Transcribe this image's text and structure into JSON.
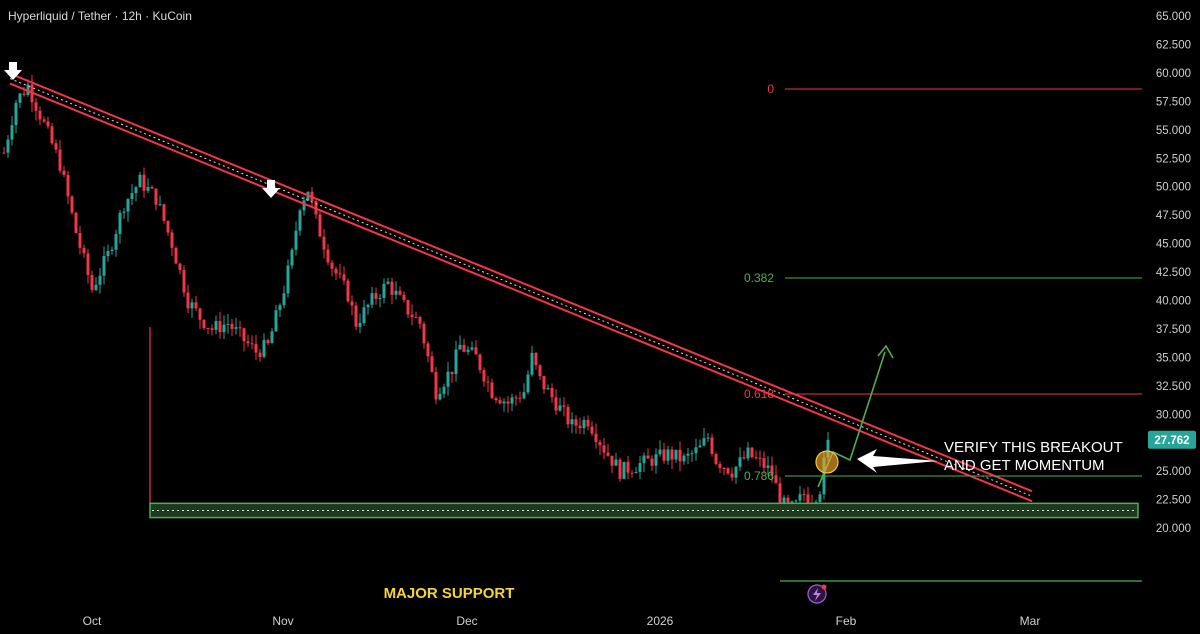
{
  "header": {
    "symbol": "Hyperliquid / Tether · 12h · KuCoin"
  },
  "chart_data": {
    "type": "candlestick",
    "pair": "Hyperliquid / Tether",
    "timeframe": "12h",
    "exchange": "KuCoin",
    "ylim": [
      20,
      65
    ],
    "y_ticks": [
      "65.000",
      "62.500",
      "60.000",
      "57.500",
      "55.000",
      "52.500",
      "50.000",
      "47.500",
      "45.000",
      "42.500",
      "40.000",
      "37.500",
      "35.000",
      "32.500",
      "30.000",
      "27.500",
      "25.000",
      "22.500",
      "20.000"
    ],
    "x_ticks": [
      "Oct",
      "Nov",
      "Dec",
      "2026",
      "Feb",
      "Mar"
    ],
    "last_price": "27.762",
    "close_path": [
      [
        0,
        53
      ],
      [
        3,
        57.5
      ],
      [
        6,
        58.9
      ],
      [
        10,
        55.5
      ],
      [
        14,
        52
      ],
      [
        18,
        46
      ],
      [
        22,
        41
      ],
      [
        26,
        44
      ],
      [
        30,
        48.5
      ],
      [
        34,
        50.5
      ],
      [
        38,
        49
      ],
      [
        42,
        45
      ],
      [
        46,
        40
      ],
      [
        49,
        38.5
      ],
      [
        52,
        37.5
      ],
      [
        56,
        38
      ],
      [
        60,
        36.5
      ],
      [
        63,
        35.5
      ],
      [
        66,
        36
      ],
      [
        68,
        38.5
      ],
      [
        70,
        41
      ],
      [
        72,
        44
      ],
      [
        74,
        48.5
      ],
      [
        76,
        49.8
      ],
      [
        78,
        47
      ],
      [
        80,
        45
      ],
      [
        82,
        43
      ],
      [
        86,
        40.5
      ],
      [
        88,
        38
      ],
      [
        92,
        40
      ],
      [
        96,
        41.5
      ],
      [
        100,
        39.5
      ],
      [
        104,
        38
      ],
      [
        106,
        35
      ],
      [
        108,
        32
      ],
      [
        112,
        34
      ],
      [
        114,
        36
      ],
      [
        118,
        35
      ],
      [
        122,
        32
      ],
      [
        126,
        31
      ],
      [
        130,
        32
      ],
      [
        132,
        35
      ],
      [
        134,
        33
      ],
      [
        138,
        31
      ],
      [
        142,
        29
      ],
      [
        146,
        29.5
      ],
      [
        150,
        27
      ],
      [
        154,
        25
      ],
      [
        158,
        25.5
      ],
      [
        162,
        26
      ],
      [
        166,
        26.5
      ],
      [
        170,
        26
      ],
      [
        174,
        27
      ],
      [
        176,
        28
      ],
      [
        178,
        26
      ],
      [
        182,
        25
      ],
      [
        186,
        26.5
      ],
      [
        190,
        25.5
      ],
      [
        192,
        24.8
      ],
      [
        194,
        22.5
      ],
      [
        196,
        21.5
      ],
      [
        198,
        22
      ],
      [
        200,
        23
      ],
      [
        202,
        22.5
      ],
      [
        204,
        23.5
      ],
      [
        206,
        27.76
      ]
    ],
    "resistance_line": {
      "from": [
        "Sep",
        "59.5"
      ],
      "to": [
        "Mar",
        "22.8"
      ]
    },
    "touch_markers": 2,
    "support_zone": [
      21.1,
      22.0
    ],
    "fib_levels": [
      {
        "label": "0",
        "color": "#f23645"
      },
      {
        "label": "0.382",
        "color": "#4caf50"
      },
      {
        "label": "0.618",
        "color": "#f23645"
      },
      {
        "label": "0.786",
        "color": "#4caf50"
      }
    ],
    "annotation_lines": [
      "VERIFY THIS BREAKOUT",
      "AND GET MOMENTUM"
    ],
    "support_label": "MAJOR SUPPORT",
    "colors": {
      "up": "#26a69a",
      "down": "#f23645",
      "support": "#4caf50",
      "resistance": "#f23645",
      "background": "#000000"
    }
  }
}
